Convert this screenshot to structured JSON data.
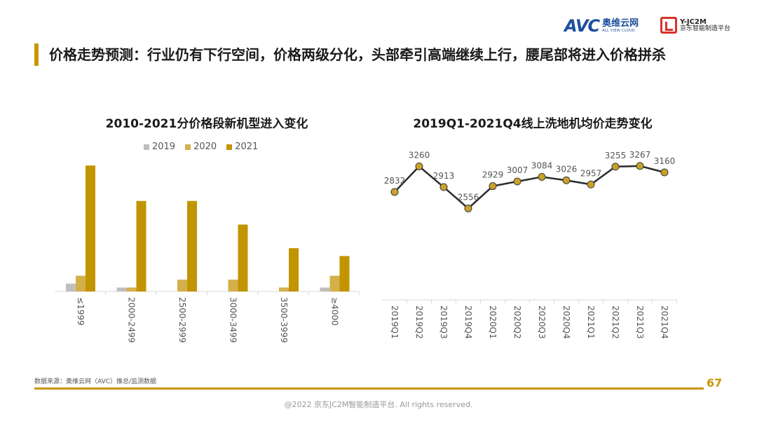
{
  "header": {
    "avc_logo": {
      "brand": "AVC",
      "cn_name": "奥维云网",
      "en_name": "ALL VIEW CLOUD"
    },
    "jd_logo": {
      "code": "Y-JC2M",
      "cn_name": "京东智能制造平台"
    },
    "headline": "价格走势预测：行业仍有下行空间，价格两级分化，头部牵引高端继续上行，腰尾部将进入价格拼杀"
  },
  "colors": {
    "accent": "#c9960a",
    "series_2019": "#bfbfbf",
    "series_2020": "#d4b04a",
    "series_2021": "#c29400",
    "line": "#2b2b2b",
    "marker": "#c9a227"
  },
  "chart_data": [
    {
      "type": "bar",
      "title": "2010-2021分价格段新机型进入变化",
      "categories": [
        "≤1999",
        "2000-2499",
        "2500-2999",
        "3000-3499",
        "3500-3999",
        "≥4000"
      ],
      "series": [
        {
          "name": "2019",
          "values": [
            2,
            1,
            0,
            0,
            0,
            1
          ]
        },
        {
          "name": "2020",
          "values": [
            4,
            1,
            3,
            3,
            1,
            4
          ]
        },
        {
          "name": "2021",
          "values": [
            32,
            23,
            23,
            17,
            11,
            9
          ]
        }
      ],
      "ylim": [
        0,
        34
      ],
      "legend": "top",
      "grid": false
    },
    {
      "type": "line",
      "title": "2019Q1-2021Q4线上洗地机均价走势变化",
      "categories": [
        "2019Q1",
        "2019Q2",
        "2019Q3",
        "2019Q4",
        "2020Q1",
        "2020Q2",
        "2020Q3",
        "2020Q4",
        "2021Q1",
        "2021Q2",
        "2021Q3",
        "2021Q4"
      ],
      "series": [
        {
          "values": [
            2832,
            3260,
            2913,
            2556,
            2929,
            3007,
            3084,
            3026,
            2957,
            3255,
            3267,
            3160
          ]
        }
      ],
      "ylim": [
        1000,
        3700
      ],
      "grid": false
    }
  ],
  "footer": {
    "source": "数据来源：奥维云网（AVC）推总/监测数据",
    "page_number": "67",
    "copyright": "@2022 京东JC2M智能制造平台. All rights reserved."
  }
}
